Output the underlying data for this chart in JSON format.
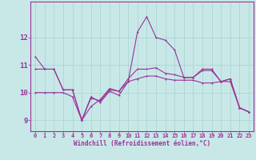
{
  "background_color": "#c8e8e8",
  "grid_color": "#a8d0d0",
  "line_color": "#993399",
  "x_ticks": [
    0,
    1,
    2,
    3,
    4,
    5,
    6,
    7,
    8,
    9,
    10,
    11,
    12,
    13,
    14,
    15,
    16,
    17,
    18,
    19,
    20,
    21,
    22,
    23
  ],
  "xlabel": "Windchill (Refroidissement éolien,°C)",
  "ylim": [
    8.6,
    13.3
  ],
  "xlim": [
    -0.5,
    23.5
  ],
  "yticks": [
    9,
    10,
    11,
    12
  ],
  "line1": [
    11.3,
    10.85,
    10.85,
    10.1,
    10.1,
    9.0,
    9.85,
    9.65,
    10.05,
    9.9,
    10.4,
    12.2,
    12.75,
    12.0,
    11.9,
    11.55,
    10.55,
    10.55,
    10.85,
    10.85,
    10.4,
    10.5,
    9.45,
    9.3
  ],
  "line2": [
    10.85,
    10.85,
    10.85,
    10.1,
    10.1,
    9.0,
    9.8,
    9.7,
    10.1,
    10.05,
    10.5,
    10.85,
    10.85,
    10.9,
    10.7,
    10.65,
    10.55,
    10.55,
    10.8,
    10.8,
    10.4,
    10.5,
    9.45,
    9.3
  ],
  "line3": [
    10.0,
    10.0,
    10.0,
    10.0,
    9.85,
    9.0,
    9.5,
    9.75,
    10.15,
    10.05,
    10.4,
    10.5,
    10.6,
    10.6,
    10.5,
    10.45,
    10.45,
    10.45,
    10.35,
    10.35,
    10.4,
    10.4,
    9.45,
    9.3
  ],
  "markersize": 2.5,
  "linewidth": 0.8,
  "tick_fontsize": 5.0,
  "xlabel_fontsize": 5.5
}
